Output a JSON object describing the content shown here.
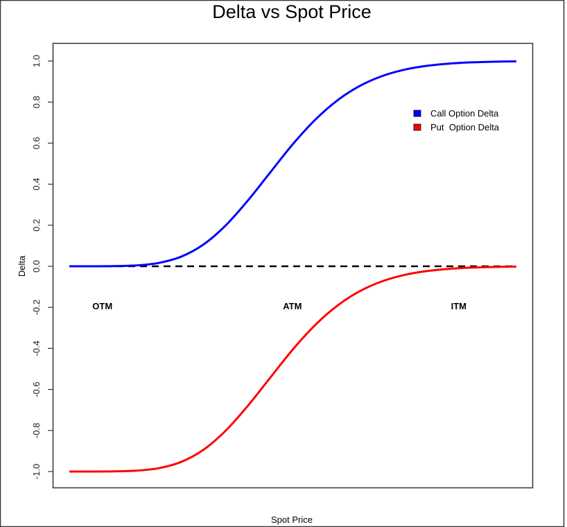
{
  "chart_data": {
    "type": "line",
    "title": "Delta vs Spot Price",
    "xlabel": "Spot Price",
    "ylabel": "Delta",
    "xlim": [
      50,
      150
    ],
    "ylim": [
      -1.0,
      1.0
    ],
    "yticks": [
      1.0,
      0.8,
      0.6,
      0.4,
      0.2,
      0.0,
      -0.2,
      -0.4,
      -0.6,
      -0.8,
      -1.0
    ],
    "ytick_labels": [
      "1.0",
      "0.8",
      "0.6",
      "0.4",
      "0.2",
      "0.0",
      "-0.2",
      "-0.4",
      "-0.6",
      "-0.8",
      "-1.0"
    ],
    "x": [
      50,
      55,
      60,
      65,
      70,
      75,
      80,
      85,
      90,
      95,
      100,
      105,
      110,
      115,
      120,
      125,
      130,
      135,
      140,
      145,
      150
    ],
    "series": [
      {
        "name": "Call Option Delta",
        "color": "#0000ff",
        "values": [
          0.0,
          0.0001,
          0.0008,
          0.0042,
          0.0163,
          0.0467,
          0.106,
          0.1996,
          0.322,
          0.459,
          0.595,
          0.714,
          0.809,
          0.879,
          0.927,
          0.958,
          0.9767,
          0.9875,
          0.9935,
          0.9967,
          0.9984
        ]
      },
      {
        "name": "Put  Option Delta",
        "color": "#ff0000",
        "values": [
          -1.0,
          -0.9999,
          -0.9992,
          -0.9958,
          -0.9837,
          -0.9533,
          -0.894,
          -0.8004,
          -0.678,
          -0.541,
          -0.405,
          -0.286,
          -0.191,
          -0.121,
          -0.073,
          -0.042,
          -0.0233,
          -0.0125,
          -0.0065,
          -0.0033,
          -0.0016
        ]
      }
    ],
    "reference_line": {
      "y": 0,
      "style": "dashed",
      "color": "#000000"
    },
    "annotations": [
      {
        "text": "OTM",
        "x": 57.4,
        "y": -0.21
      },
      {
        "text": "ATM",
        "x": 99.9,
        "y": -0.21
      },
      {
        "text": "ITM",
        "x": 137.1,
        "y": -0.21
      }
    ],
    "legend": {
      "placement": "top-right",
      "entries": [
        "Call Option Delta",
        "Put  Option Delta"
      ]
    },
    "grid": false
  }
}
